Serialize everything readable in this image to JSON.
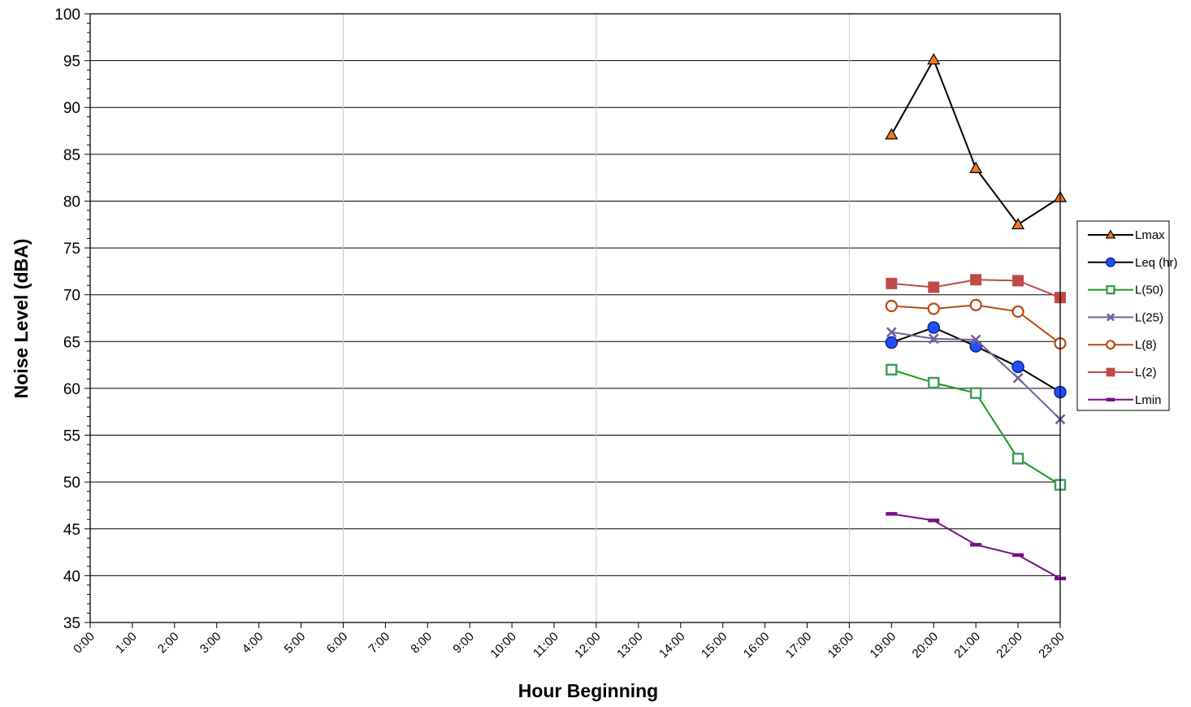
{
  "chart_data": {
    "type": "line",
    "title": "",
    "xlabel": "Hour Beginning",
    "ylabel": "Noise Level (dBA)",
    "ylim": [
      35,
      100
    ],
    "yticks": [
      35,
      40,
      45,
      50,
      55,
      60,
      65,
      70,
      75,
      80,
      85,
      90,
      95,
      100
    ],
    "categories": [
      "0:00",
      "1:00",
      "2:00",
      "3:00",
      "4:00",
      "5:00",
      "6:00",
      "7:00",
      "8:00",
      "9:00",
      "10:00",
      "11:00",
      "12:00",
      "13:00",
      "14:00",
      "15:00",
      "16:00",
      "17:00",
      "18:00",
      "19:00",
      "20:00",
      "21:00",
      "22:00",
      "23:00"
    ],
    "grid": "horizontal major lines; vertical lines at 6:00, 12:00, 18:00",
    "legend_position": "right",
    "series": [
      {
        "name": "Lmax",
        "marker": "triangle",
        "line_color": "#000000",
        "marker_fill": "#f07820",
        "marker_stroke": "#000000",
        "x": [
          "19:00",
          "20:00",
          "21:00",
          "22:00",
          "23:00"
        ],
        "values": [
          87.1,
          95.1,
          83.5,
          77.5,
          80.4
        ]
      },
      {
        "name": "Leq (hr)",
        "marker": "circle",
        "line_color": "#000000",
        "marker_fill": "#1f4fff",
        "marker_stroke": "#10208a",
        "x": [
          "19:00",
          "20:00",
          "21:00",
          "22:00",
          "23:00"
        ],
        "values": [
          64.9,
          66.5,
          64.5,
          62.3,
          59.6
        ]
      },
      {
        "name": "L(50)",
        "marker": "square-open",
        "line_color": "#1a9a1a",
        "marker_fill": "#ffffff",
        "marker_stroke": "#3a9a5a",
        "x": [
          "19:00",
          "20:00",
          "21:00",
          "22:00",
          "23:00"
        ],
        "values": [
          62.0,
          60.6,
          59.5,
          52.5,
          49.7
        ]
      },
      {
        "name": "L(25)",
        "marker": "x",
        "line_color": "#7060a0",
        "marker_fill": "none",
        "marker_stroke": "#7060a0",
        "x": [
          "19:00",
          "20:00",
          "21:00",
          "22:00",
          "23:00"
        ],
        "values": [
          66.0,
          65.3,
          65.2,
          61.1,
          56.7
        ]
      },
      {
        "name": "L(8)",
        "marker": "circle-open",
        "line_color": "#b84a10",
        "marker_fill": "#ffffff",
        "marker_stroke": "#b84a10",
        "x": [
          "19:00",
          "20:00",
          "21:00",
          "22:00",
          "23:00"
        ],
        "values": [
          68.8,
          68.5,
          68.9,
          68.2,
          64.8
        ]
      },
      {
        "name": "L(2)",
        "marker": "square",
        "line_color": "#c04a48",
        "marker_fill": "#c04a48",
        "marker_stroke": "#c04a48",
        "x": [
          "19:00",
          "20:00",
          "21:00",
          "22:00",
          "23:00"
        ],
        "values": [
          71.2,
          70.8,
          71.6,
          71.5,
          69.7
        ]
      },
      {
        "name": "Lmin",
        "marker": "dash",
        "line_color": "#7a0a8a",
        "marker_fill": "#7a0a8a",
        "marker_stroke": "#7a0a8a",
        "x": [
          "19:00",
          "20:00",
          "21:00",
          "22:00",
          "23:00"
        ],
        "values": [
          46.6,
          45.9,
          43.3,
          42.2,
          39.7
        ]
      }
    ]
  }
}
